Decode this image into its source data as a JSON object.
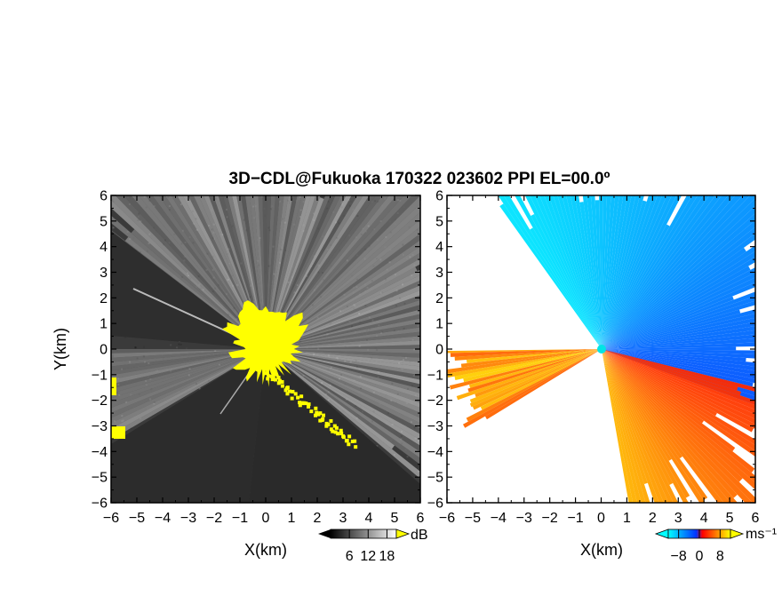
{
  "title": "3D−CDL@Fukuoka 170322 023602 PPI EL=00.0º",
  "chart_data": [
    {
      "type": "heatmap",
      "panel": "left",
      "quantity": "signal-to-noise ratio",
      "xlabel": "X(km)",
      "ylabel": "Y(km)",
      "xlim": [
        -6,
        6
      ],
      "ylim": [
        -6,
        6
      ],
      "xticks": [
        "−6",
        "−5",
        "−4",
        "−3",
        "−2",
        "−1",
        "0",
        "1",
        "2",
        "3",
        "4",
        "5",
        "6"
      ],
      "yticks": [
        "−6",
        "−5",
        "−4",
        "−3",
        "−2",
        "−1",
        "0",
        "1",
        "2",
        "3",
        "4",
        "5",
        "6"
      ],
      "colorbar": {
        "unit": "dB",
        "ticks": [
          "6",
          "12",
          "18"
        ],
        "tick_values": [
          6,
          12,
          18
        ],
        "range": [
          0,
          21
        ],
        "colors": [
          "#000000",
          "#ffffff"
        ],
        "overflow_color": "#ffff00"
      },
      "colors": {
        "background": "#3a3a3a",
        "high": "#ffff00"
      }
    },
    {
      "type": "heatmap",
      "panel": "right",
      "quantity": "radial velocity",
      "xlabel": "X(km)",
      "ylabel": "",
      "xlim": [
        -6,
        6
      ],
      "ylim": [
        -6,
        6
      ],
      "xticks": [
        "−6",
        "−5",
        "−4",
        "−3",
        "−2",
        "−1",
        "0",
        "1",
        "2",
        "3",
        "4",
        "5",
        "6"
      ],
      "yticks": [
        "−6",
        "−5",
        "−4",
        "−3",
        "−2",
        "−1",
        "0",
        "1",
        "2",
        "3",
        "4",
        "5",
        "6"
      ],
      "colorbar": {
        "unit": "ms⁻¹",
        "ticks": [
          "−8",
          "0",
          "8"
        ],
        "tick_values": [
          -8,
          0,
          8
        ],
        "range": [
          -12,
          12
        ],
        "colors": [
          "#00ffff",
          "#0033ff",
          "#ff0000",
          "#ffff00"
        ]
      }
    }
  ]
}
